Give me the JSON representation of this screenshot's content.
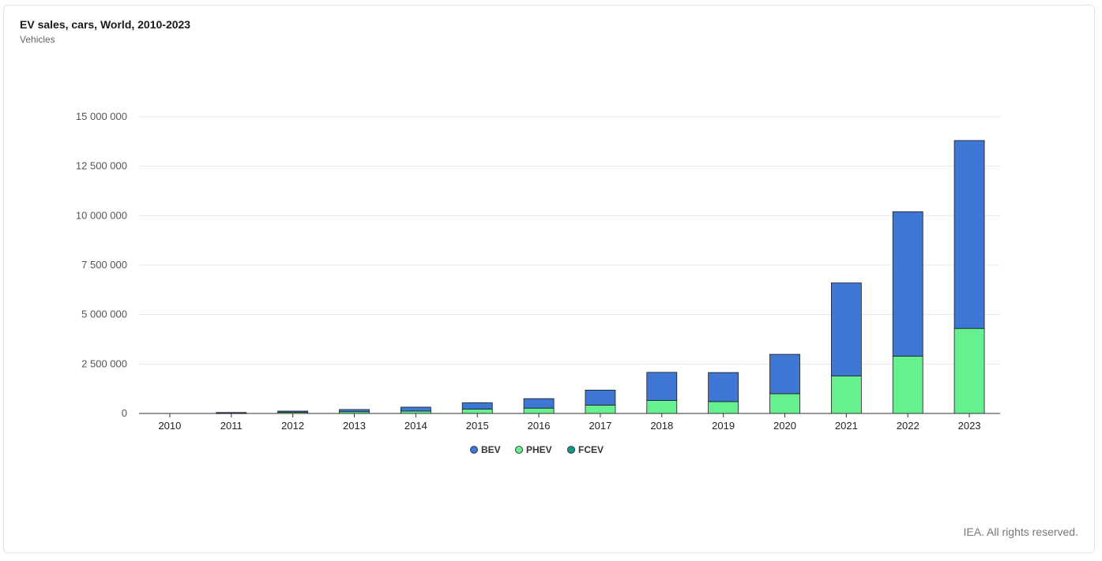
{
  "chart_data": {
    "type": "bar",
    "stacked": true,
    "title": "EV sales, cars, World, 2010-2023",
    "subtitle": "Vehicles",
    "credit": "IEA. All rights reserved.",
    "categories": [
      "2010",
      "2011",
      "2012",
      "2013",
      "2014",
      "2015",
      "2016",
      "2017",
      "2018",
      "2019",
      "2020",
      "2021",
      "2022",
      "2023"
    ],
    "series": [
      {
        "name": "PHEV",
        "color": "#67f08f",
        "values": [
          0,
          10000,
          60000,
          90000,
          120000,
          220000,
          270000,
          420000,
          660000,
          600000,
          1000000,
          1900000,
          2900000,
          4300000
        ]
      },
      {
        "name": "BEV",
        "color": "#3e78d4",
        "values": [
          0,
          40000,
          60000,
          110000,
          200000,
          320000,
          480000,
          760000,
          1420000,
          1470000,
          1990000,
          4700000,
          7300000,
          9500000
        ]
      },
      {
        "name": "FCEV",
        "color": "#10998f",
        "values": [
          0,
          0,
          0,
          0,
          0,
          0,
          0,
          0,
          0,
          0,
          0,
          0,
          0,
          0
        ]
      }
    ],
    "legend_order": [
      "BEV",
      "PHEV",
      "FCEV"
    ],
    "ylim": [
      0,
      15000000
    ],
    "yticks": [
      0,
      2500000,
      5000000,
      7500000,
      10000000,
      12500000,
      15000000
    ],
    "ytick_labels": [
      "0",
      "2 500 000",
      "5 000 000",
      "7 500 000",
      "10 000 000",
      "12 500 000",
      "15 000 000"
    ],
    "grid": true,
    "legend_position": "bottom"
  }
}
